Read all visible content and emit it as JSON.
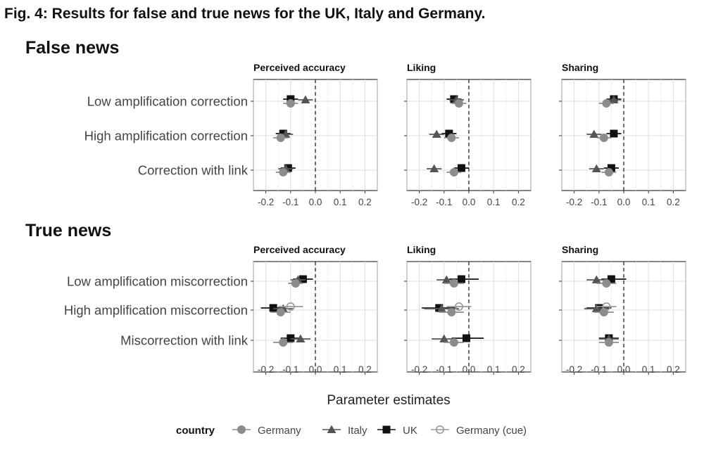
{
  "figure_title": "Fig. 4: Results for false and true news for the UK, Italy and Germany.",
  "colors": {
    "Germany": "#8c8c8c",
    "Italy": "#555555",
    "UK": "#111111",
    "Germany (cue)": "#9a9a9a"
  },
  "chart_data": {
    "type": "scatter",
    "subtype": "coefficient-plot",
    "xlabel": "Parameter estimates",
    "xlim": [
      -0.25,
      0.25
    ],
    "x_ticks": [
      "-0.2",
      "-0.1",
      "0.0",
      "0.1",
      "0.2"
    ],
    "x_tick_values": [
      -0.2,
      -0.1,
      0.0,
      0.1,
      0.2
    ],
    "reference_line": 0,
    "grid": true,
    "legend": {
      "title": "country",
      "placement": "bottom",
      "entries": [
        {
          "name": "Germany",
          "marker": "circle-filled"
        },
        {
          "name": "Italy",
          "marker": "triangle-filled"
        },
        {
          "name": "UK",
          "marker": "square-filled"
        },
        {
          "name": "Germany (cue)",
          "marker": "circle-open"
        }
      ]
    },
    "sections": [
      {
        "title": "False news",
        "rows": [
          "Low amplification correction",
          "High amplification correction",
          "Correction with link"
        ],
        "panels": [
          {
            "title": "Perceived accuracy",
            "points": [
              {
                "row": 0,
                "series": "UK",
                "est": -0.1,
                "lo": -0.13,
                "hi": -0.07
              },
              {
                "row": 0,
                "series": "Italy",
                "est": -0.04,
                "lo": -0.07,
                "hi": -0.01
              },
              {
                "row": 0,
                "series": "Germany",
                "est": -0.1,
                "lo": -0.13,
                "hi": -0.07
              },
              {
                "row": 1,
                "series": "UK",
                "est": -0.13,
                "lo": -0.16,
                "hi": -0.1
              },
              {
                "row": 1,
                "series": "Italy",
                "est": -0.12,
                "lo": -0.15,
                "hi": -0.09
              },
              {
                "row": 1,
                "series": "Germany",
                "est": -0.14,
                "lo": -0.17,
                "hi": -0.11
              },
              {
                "row": 2,
                "series": "UK",
                "est": -0.11,
                "lo": -0.14,
                "hi": -0.08
              },
              {
                "row": 2,
                "series": "Italy",
                "est": -0.12,
                "lo": -0.15,
                "hi": -0.09
              },
              {
                "row": 2,
                "series": "Germany",
                "est": -0.13,
                "lo": -0.16,
                "hi": -0.1
              }
            ]
          },
          {
            "title": "Liking",
            "points": [
              {
                "row": 0,
                "series": "UK",
                "est": -0.06,
                "lo": -0.09,
                "hi": -0.03
              },
              {
                "row": 0,
                "series": "Italy",
                "est": -0.05,
                "lo": -0.08,
                "hi": -0.02
              },
              {
                "row": 0,
                "series": "Germany",
                "est": -0.04,
                "lo": -0.07,
                "hi": -0.01
              },
              {
                "row": 1,
                "series": "UK",
                "est": -0.08,
                "lo": -0.11,
                "hi": -0.05
              },
              {
                "row": 1,
                "series": "Italy",
                "est": -0.13,
                "lo": -0.16,
                "hi": -0.1
              },
              {
                "row": 1,
                "series": "Germany",
                "est": -0.07,
                "lo": -0.1,
                "hi": -0.04
              },
              {
                "row": 2,
                "series": "UK",
                "est": -0.03,
                "lo": -0.06,
                "hi": 0.0
              },
              {
                "row": 2,
                "series": "Italy",
                "est": -0.14,
                "lo": -0.17,
                "hi": -0.11
              },
              {
                "row": 2,
                "series": "Germany",
                "est": -0.06,
                "lo": -0.09,
                "hi": -0.03
              }
            ]
          },
          {
            "title": "Sharing",
            "points": [
              {
                "row": 0,
                "series": "UK",
                "est": -0.04,
                "lo": -0.07,
                "hi": -0.01
              },
              {
                "row": 0,
                "series": "Italy",
                "est": -0.04,
                "lo": -0.07,
                "hi": -0.01
              },
              {
                "row": 0,
                "series": "Germany",
                "est": -0.07,
                "lo": -0.1,
                "hi": -0.04
              },
              {
                "row": 1,
                "series": "UK",
                "est": -0.04,
                "lo": -0.07,
                "hi": -0.01
              },
              {
                "row": 1,
                "series": "Italy",
                "est": -0.12,
                "lo": -0.15,
                "hi": -0.09
              },
              {
                "row": 1,
                "series": "Germany",
                "est": -0.08,
                "lo": -0.11,
                "hi": -0.05
              },
              {
                "row": 2,
                "series": "UK",
                "est": -0.05,
                "lo": -0.08,
                "hi": -0.02
              },
              {
                "row": 2,
                "series": "Italy",
                "est": -0.11,
                "lo": -0.14,
                "hi": -0.08
              },
              {
                "row": 2,
                "series": "Germany",
                "est": -0.06,
                "lo": -0.09,
                "hi": -0.03
              }
            ]
          }
        ]
      },
      {
        "title": "True news",
        "rows": [
          "Low amplification miscorrection",
          "High amplification miscorrection",
          "Miscorrection with link"
        ],
        "panels": [
          {
            "title": "Perceived accuracy",
            "points": [
              {
                "row": 0,
                "series": "UK",
                "est": -0.05,
                "lo": -0.09,
                "hi": -0.01
              },
              {
                "row": 0,
                "series": "Italy",
                "est": -0.07,
                "lo": -0.1,
                "hi": -0.04
              },
              {
                "row": 0,
                "series": "Germany",
                "est": -0.08,
                "lo": -0.11,
                "hi": -0.05
              },
              {
                "row": 1,
                "series": "UK",
                "est": -0.17,
                "lo": -0.22,
                "hi": -0.12
              },
              {
                "row": 1,
                "series": "Italy",
                "est": -0.13,
                "lo": -0.17,
                "hi": -0.09
              },
              {
                "row": 1,
                "series": "Germany",
                "est": -0.14,
                "lo": -0.18,
                "hi": -0.1
              },
              {
                "row": 1,
                "series": "Germany (cue)",
                "est": -0.1,
                "lo": -0.15,
                "hi": -0.05
              },
              {
                "row": 2,
                "series": "UK",
                "est": -0.1,
                "lo": -0.14,
                "hi": -0.06
              },
              {
                "row": 2,
                "series": "Italy",
                "est": -0.06,
                "lo": -0.1,
                "hi": -0.02
              },
              {
                "row": 2,
                "series": "Germany",
                "est": -0.13,
                "lo": -0.17,
                "hi": -0.09
              }
            ]
          },
          {
            "title": "Liking",
            "points": [
              {
                "row": 0,
                "series": "UK",
                "est": -0.03,
                "lo": -0.08,
                "hi": 0.04
              },
              {
                "row": 0,
                "series": "Italy",
                "est": -0.09,
                "lo": -0.13,
                "hi": -0.05
              },
              {
                "row": 0,
                "series": "Germany",
                "est": -0.06,
                "lo": -0.1,
                "hi": -0.02
              },
              {
                "row": 1,
                "series": "UK",
                "est": -0.12,
                "lo": -0.19,
                "hi": -0.05
              },
              {
                "row": 1,
                "series": "Italy",
                "est": -0.11,
                "lo": -0.18,
                "hi": -0.04
              },
              {
                "row": 1,
                "series": "Germany",
                "est": -0.07,
                "lo": -0.12,
                "hi": -0.02
              },
              {
                "row": 1,
                "series": "Germany (cue)",
                "est": -0.04,
                "lo": -0.09,
                "hi": 0.01
              },
              {
                "row": 2,
                "series": "UK",
                "est": -0.01,
                "lo": -0.07,
                "hi": 0.06
              },
              {
                "row": 2,
                "series": "Italy",
                "est": -0.1,
                "lo": -0.15,
                "hi": -0.05
              },
              {
                "row": 2,
                "series": "Germany",
                "est": -0.06,
                "lo": -0.1,
                "hi": -0.02
              }
            ]
          },
          {
            "title": "Sharing",
            "points": [
              {
                "row": 0,
                "series": "UK",
                "est": -0.05,
                "lo": -0.09,
                "hi": 0.01
              },
              {
                "row": 0,
                "series": "Italy",
                "est": -0.11,
                "lo": -0.15,
                "hi": -0.07
              },
              {
                "row": 0,
                "series": "Germany",
                "est": -0.07,
                "lo": -0.11,
                "hi": -0.03
              },
              {
                "row": 1,
                "series": "UK",
                "est": -0.1,
                "lo": -0.15,
                "hi": -0.05
              },
              {
                "row": 1,
                "series": "Italy",
                "est": -0.11,
                "lo": -0.16,
                "hi": -0.06
              },
              {
                "row": 1,
                "series": "Germany",
                "est": -0.08,
                "lo": -0.12,
                "hi": -0.04
              },
              {
                "row": 1,
                "series": "Germany (cue)",
                "est": -0.07,
                "lo": -0.11,
                "hi": -0.03
              },
              {
                "row": 2,
                "series": "UK",
                "est": -0.06,
                "lo": -0.1,
                "hi": -0.02
              },
              {
                "row": 2,
                "series": "Italy",
                "est": -0.06,
                "lo": -0.1,
                "hi": -0.02
              },
              {
                "row": 2,
                "series": "Germany",
                "est": -0.06,
                "lo": -0.1,
                "hi": -0.02
              }
            ]
          }
        ]
      }
    ]
  }
}
